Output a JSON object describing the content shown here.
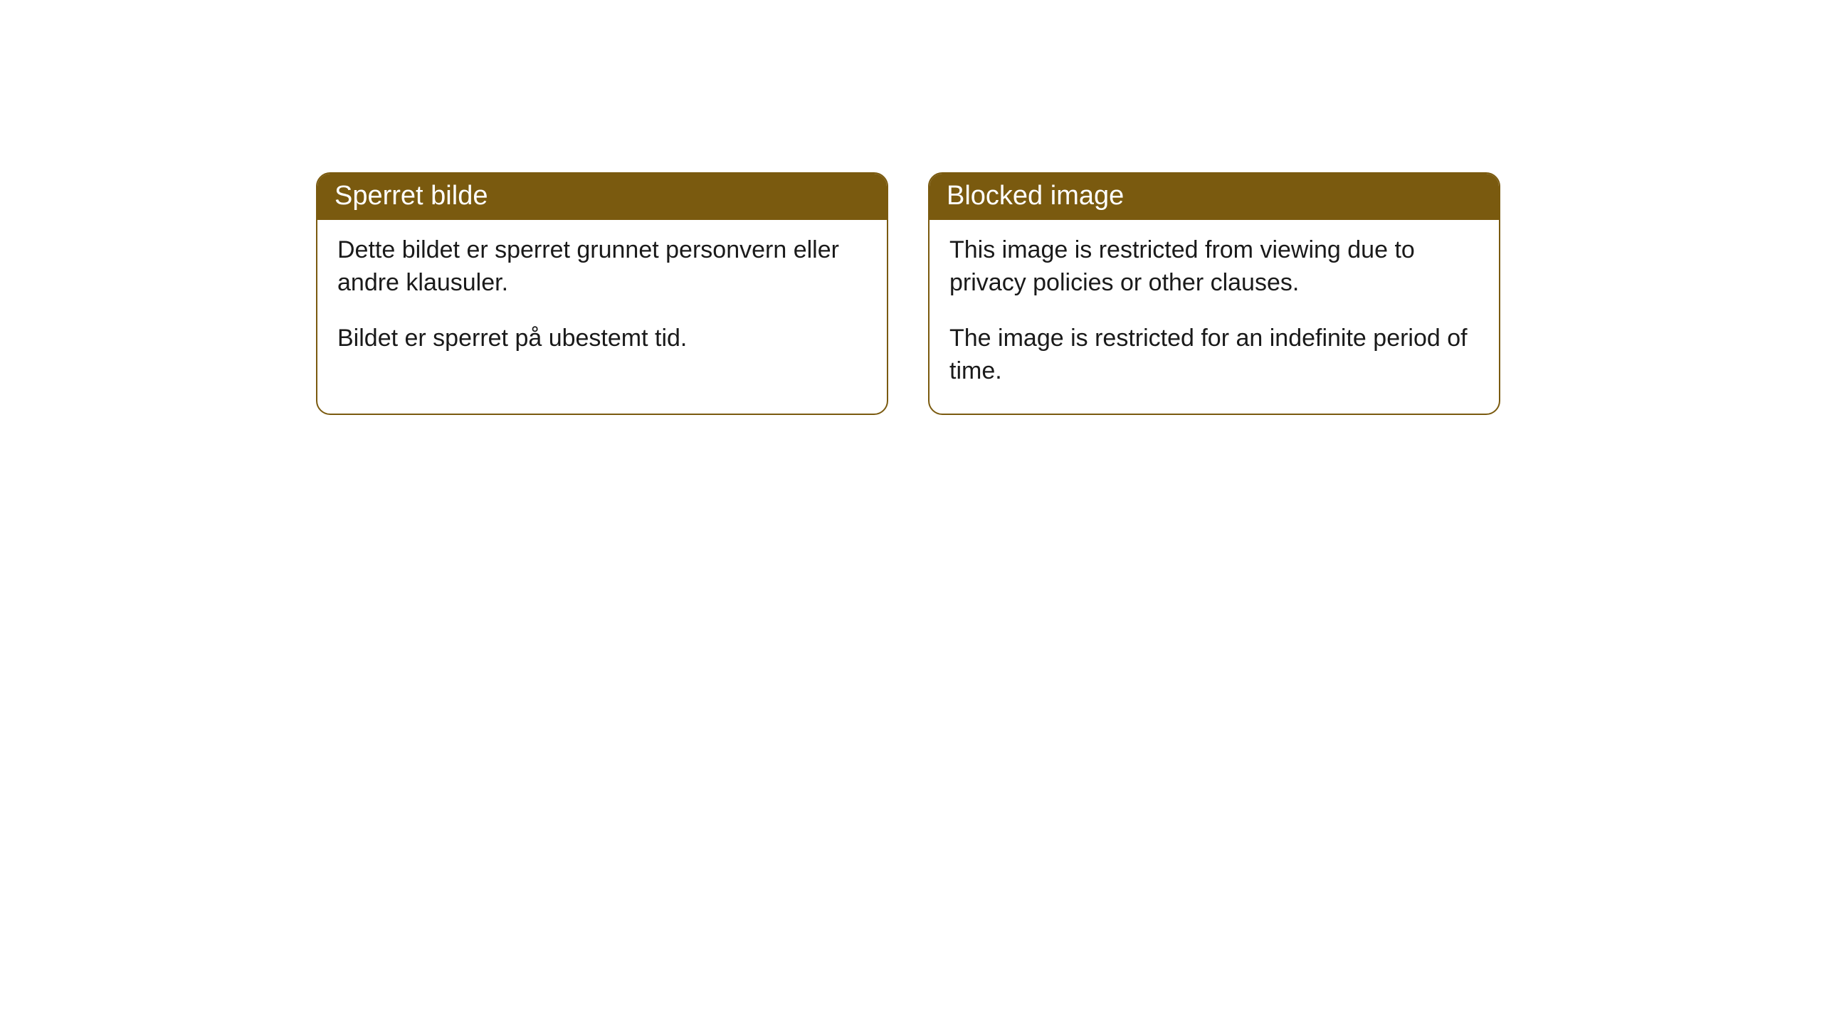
{
  "cards": [
    {
      "title": "Sperret bilde",
      "paragraph1": "Dette bildet er sperret grunnet personvern eller andre klausuler.",
      "paragraph2": "Bildet er sperret på ubestemt tid."
    },
    {
      "title": "Blocked image",
      "paragraph1": "This image is restricted from viewing due to privacy policies or other clauses.",
      "paragraph2": "The image is restricted for an indefinite period of time."
    }
  ],
  "styling": {
    "header_background": "#7a5a0f",
    "header_text_color": "#ffffff",
    "body_text_color": "#1a1a1a",
    "card_border_color": "#7a5a0f",
    "card_border_radius": 20,
    "page_background": "#ffffff",
    "header_fontsize": 38,
    "body_fontsize": 34
  }
}
